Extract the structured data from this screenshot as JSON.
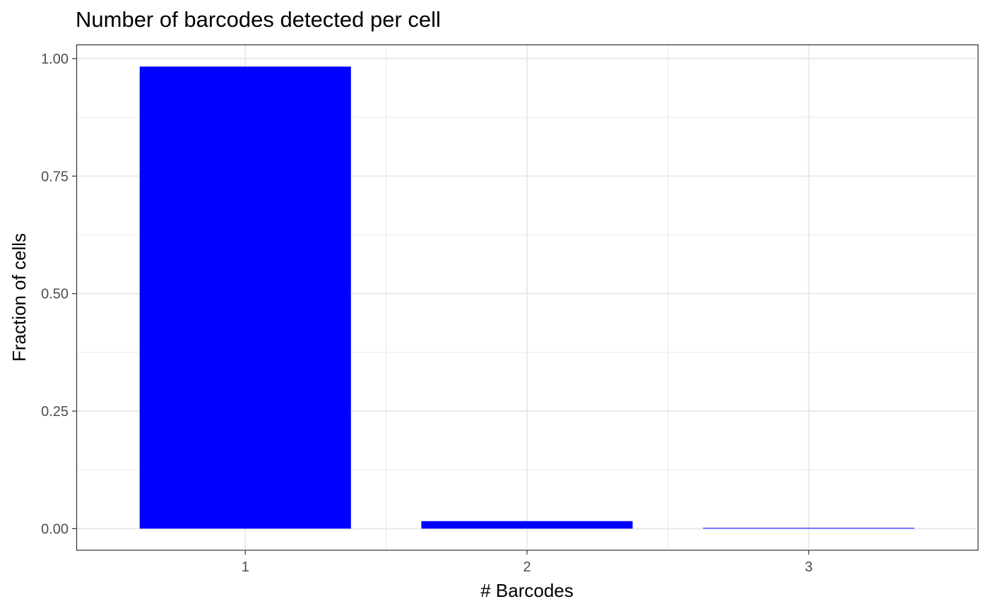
{
  "chart_data": {
    "type": "bar",
    "title": "Number of barcodes detected per cell",
    "xlabel": "# Barcodes",
    "ylabel": "Fraction of cells",
    "categories": [
      "1",
      "2",
      "3"
    ],
    "values": [
      0.983,
      0.016,
      0.001
    ],
    "ylim": [
      -0.046,
      1.03
    ],
    "yticks": [
      "0.00",
      "0.25",
      "0.50",
      "0.75",
      "1.00"
    ],
    "ytick_values": [
      0,
      0.25,
      0.5,
      0.75,
      1.0
    ],
    "grid": true,
    "colors": {
      "bar": "#0000ff",
      "grid": "#ebebeb",
      "panel_border": "#333333",
      "axis_text": "#4d4d4d"
    }
  }
}
